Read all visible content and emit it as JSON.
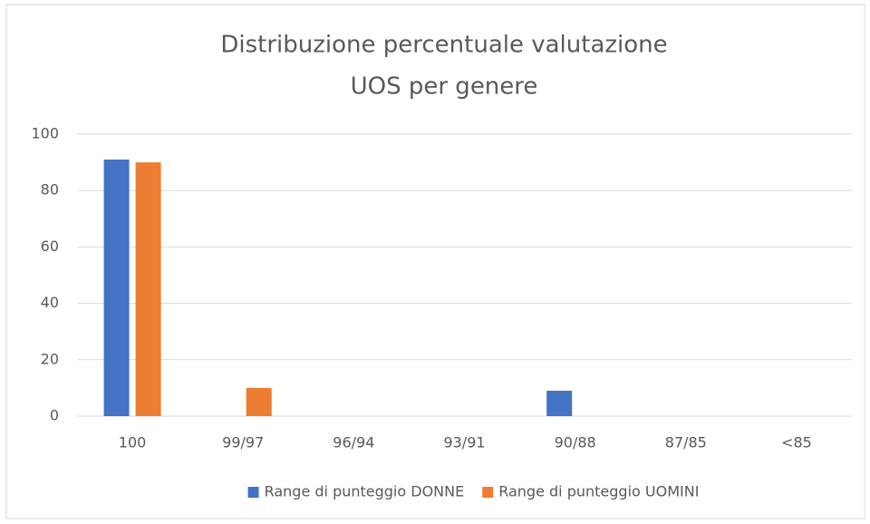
{
  "chart_data": {
    "type": "bar",
    "title": [
      "Distribuzione percentuale valutazione",
      "UOS per genere"
    ],
    "categories": [
      "100",
      "99/97",
      "96/94",
      "93/91",
      "90/88",
      "87/85",
      "<85"
    ],
    "series": [
      {
        "name": "Range di punteggio DONNE",
        "color": "#4472c4",
        "values": [
          91,
          0,
          0,
          0,
          9,
          0,
          0
        ]
      },
      {
        "name": "Range di punteggio UOMINI",
        "color": "#ed7d31",
        "values": [
          90,
          10,
          0,
          0,
          0,
          0,
          0
        ]
      }
    ],
    "ylim": [
      0,
      100
    ],
    "yticks": [
      0,
      20,
      40,
      60,
      80,
      100
    ],
    "grid": true,
    "legend": "bottom"
  }
}
